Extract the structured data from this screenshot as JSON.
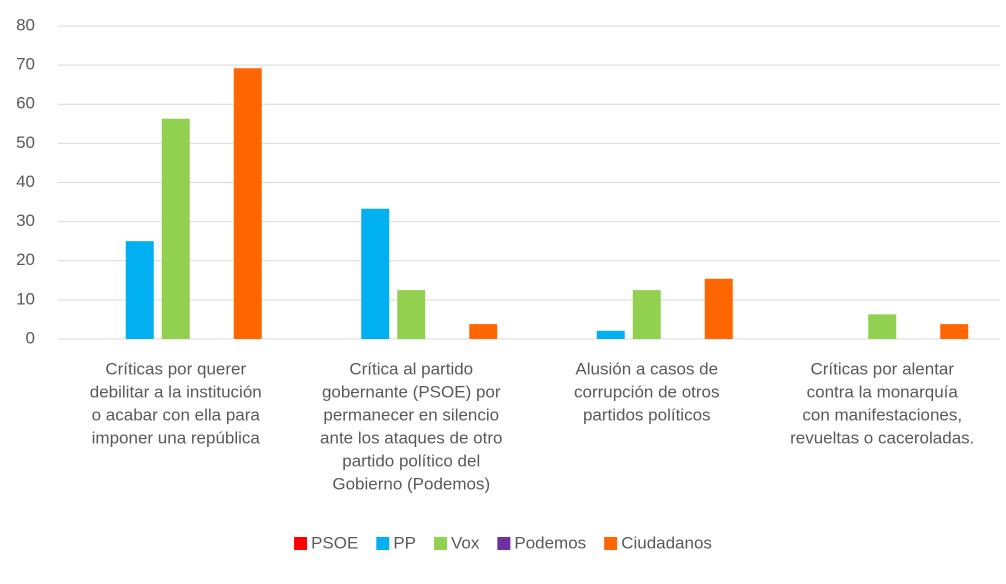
{
  "chart_data": {
    "type": "bar",
    "categories": [
      [
        "Críticas por querer",
        "debilitar a la institución",
        "o acabar con ella para",
        "imponer una república"
      ],
      [
        "Crítica al partido",
        "gobernante (PSOE) por",
        "permanecer en silencio",
        "ante los ataques de otro",
        "partido político del",
        "Gobierno (Podemos)"
      ],
      [
        "Alusión a casos de",
        "corrupción de otros",
        "partidos políticos"
      ],
      [
        "Críticas por alentar",
        "contra la monarquía",
        "con manifestaciones,",
        "revueltas o caceroladas."
      ]
    ],
    "series": [
      {
        "name": "PSOE",
        "color": "#ff0000",
        "values": [
          0,
          0,
          0,
          0
        ]
      },
      {
        "name": "PP",
        "color": "#00b0f0",
        "values": [
          25,
          33.3,
          2.1,
          0
        ]
      },
      {
        "name": "Vox",
        "color": "#92d050",
        "values": [
          56.3,
          12.5,
          12.5,
          6.3
        ]
      },
      {
        "name": "Podemos",
        "color": "#7030a0",
        "values": [
          0,
          0,
          0,
          0
        ]
      },
      {
        "name": "Ciudadanos",
        "color": "#ff6600",
        "values": [
          69.2,
          3.8,
          15.4,
          3.8
        ]
      }
    ],
    "ylim": [
      0,
      80
    ],
    "yticks": [
      0,
      10,
      20,
      30,
      40,
      50,
      60,
      70,
      80
    ],
    "grid": true,
    "legend": "bottom"
  }
}
